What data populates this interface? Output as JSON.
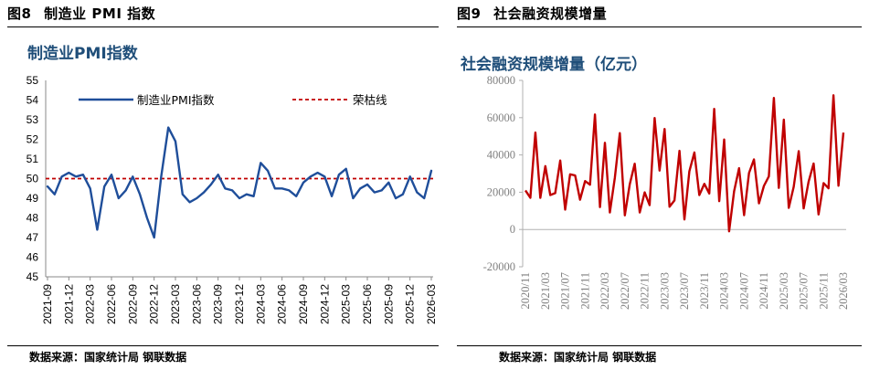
{
  "figures": [
    {
      "number": "图8",
      "title": "制造业 PMI 指数",
      "source": "数据来源：国家统计局 钢联数据"
    },
    {
      "number": "图9",
      "title": "社会融资规模增量",
      "source": "数据来源：国家统计局 钢联数据"
    }
  ],
  "chart_data": [
    {
      "type": "line",
      "title": "制造业PMI指数",
      "title_color": "#1f4e79",
      "ylim": [
        45,
        55
      ],
      "yticks": [
        45,
        46,
        47,
        48,
        49,
        50,
        51,
        52,
        53,
        54,
        55
      ],
      "xticks": [
        "2021-09",
        "2021-12",
        "2022-03",
        "2022-06",
        "2022-09",
        "2022-12",
        "2023-03",
        "2023-06",
        "2023-09",
        "2023-12",
        "2024-03",
        "2024-06",
        "2024-09",
        "2024-12",
        "2025-03",
        "2025-06",
        "2025-09",
        "2025-12",
        "2026-03"
      ],
      "x": [
        "2021-09",
        "2021-10",
        "2021-11",
        "2021-12",
        "2022-01",
        "2022-02",
        "2022-03",
        "2022-04",
        "2022-05",
        "2022-06",
        "2022-07",
        "2022-08",
        "2022-09",
        "2022-10",
        "2022-11",
        "2022-12",
        "2023-01",
        "2023-02",
        "2023-03",
        "2023-04",
        "2023-05",
        "2023-06",
        "2023-07",
        "2023-08",
        "2023-09",
        "2023-10",
        "2023-11",
        "2023-12",
        "2024-01",
        "2024-02",
        "2024-03",
        "2024-04",
        "2024-05",
        "2024-06",
        "2024-07",
        "2024-08",
        "2024-09",
        "2024-10",
        "2024-11",
        "2024-12",
        "2025-01",
        "2025-02",
        "2025-03",
        "2025-04",
        "2025-05",
        "2025-06",
        "2025-07",
        "2025-08",
        "2025-09",
        "2025-10",
        "2025-11",
        "2025-12",
        "2026-01",
        "2026-02",
        "2026-03"
      ],
      "series": [
        {
          "name": "制造业PMI指数",
          "color": "#1f4e9a",
          "style": "solid",
          "values": [
            49.6,
            49.2,
            50.1,
            50.3,
            50.1,
            50.2,
            49.5,
            47.4,
            49.6,
            50.2,
            49.0,
            49.4,
            50.1,
            49.2,
            48.0,
            47.0,
            50.1,
            52.6,
            51.9,
            49.2,
            48.8,
            49.0,
            49.3,
            49.7,
            50.2,
            49.5,
            49.4,
            49.0,
            49.2,
            49.1,
            50.8,
            50.4,
            49.5,
            49.5,
            49.4,
            49.1,
            49.8,
            50.1,
            50.3,
            50.1,
            49.1,
            50.2,
            50.5,
            49.0,
            49.5,
            49.7,
            49.3,
            49.4,
            49.8,
            49.0,
            49.2,
            50.1,
            49.3,
            49.0,
            50.4
          ]
        },
        {
          "name": "荣枯线",
          "color": "#c00000",
          "style": "dashed",
          "value": 50
        }
      ]
    },
    {
      "type": "line",
      "title": "社会融资规模增量（亿元）",
      "title_color": "#1f4e79",
      "ylim": [
        -20000,
        80000
      ],
      "yticks": [
        -20000,
        0,
        20000,
        40000,
        60000,
        80000
      ],
      "xticks": [
        "2020/11",
        "2021/03",
        "2021/07",
        "2021/11",
        "2022/03",
        "2022/07",
        "2022/11",
        "2023/03",
        "2023/07",
        "2023/11",
        "2024/03",
        "2024/07",
        "2024/11",
        "2025/03",
        "2025/07",
        "2025/11",
        "2026/03"
      ],
      "x": [
        "2020/11",
        "2020/12",
        "2021/01",
        "2021/02",
        "2021/03",
        "2021/04",
        "2021/05",
        "2021/06",
        "2021/07",
        "2021/08",
        "2021/09",
        "2021/10",
        "2021/11",
        "2021/12",
        "2022/01",
        "2022/02",
        "2022/03",
        "2022/04",
        "2022/05",
        "2022/06",
        "2022/07",
        "2022/08",
        "2022/09",
        "2022/10",
        "2022/11",
        "2022/12",
        "2023/01",
        "2023/02",
        "2023/03",
        "2023/04",
        "2023/05",
        "2023/06",
        "2023/07",
        "2023/08",
        "2023/09",
        "2023/10",
        "2023/11",
        "2023/12",
        "2024/01",
        "2024/02",
        "2024/03",
        "2024/04",
        "2024/05",
        "2024/06",
        "2024/07",
        "2024/08",
        "2024/09",
        "2024/10",
        "2024/11",
        "2024/12",
        "2025/01",
        "2025/02",
        "2025/03",
        "2025/04",
        "2025/05",
        "2025/06",
        "2025/07",
        "2025/08",
        "2025/09",
        "2025/10",
        "2025/11",
        "2025/12",
        "2026/01",
        "2026/02",
        "2026/03"
      ],
      "series": [
        {
          "name": "社会融资规模增量",
          "color": "#c00000",
          "values": [
            21000,
            17000,
            52000,
            17000,
            34000,
            18500,
            19500,
            37000,
            10700,
            29600,
            29000,
            16000,
            26000,
            24000,
            61700,
            12000,
            46500,
            9100,
            27900,
            51700,
            7600,
            24300,
            35300,
            9100,
            19900,
            13100,
            59800,
            31600,
            53900,
            12200,
            15600,
            42200,
            5400,
            31200,
            41300,
            18500,
            24500,
            19300,
            64700,
            15200,
            48300,
            -1000,
            20600,
            32900,
            7700,
            30300,
            37600,
            14000,
            23400,
            28500,
            70600,
            22300,
            58900,
            11600,
            22900,
            42000,
            11300,
            25700,
            35400,
            8100,
            24900,
            22100,
            72000,
            23500,
            52000
          ]
        }
      ]
    }
  ]
}
